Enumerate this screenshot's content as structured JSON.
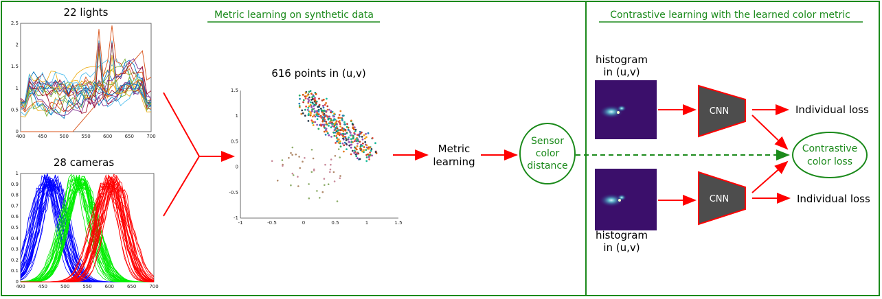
{
  "sections": {
    "left_title": "Metric learning on synthetic data",
    "right_title": "Contrastive learning with the learned color metric"
  },
  "lights_plot": {
    "title": "22 lights",
    "x_ticks": [
      "400",
      "450",
      "500",
      "550",
      "600",
      "650",
      "700"
    ],
    "y_ticks": [
      "0",
      "0.5",
      "1",
      "1.5",
      "2",
      "2.5"
    ]
  },
  "cameras_plot": {
    "title": "28 cameras",
    "x_ticks": [
      "400",
      "450",
      "500",
      "550",
      "600",
      "650",
      "700"
    ],
    "y_ticks": [
      "0",
      "0.1",
      "0.2",
      "0.3",
      "0.4",
      "0.5",
      "0.6",
      "0.7",
      "0.8",
      "0.9",
      "1"
    ],
    "channel_colors": [
      "#0000ff",
      "#00ee00",
      "#ff0000"
    ]
  },
  "scatter_plot": {
    "title": "616 points in (u,v)",
    "x_ticks": [
      "-1",
      "-0.5",
      "0",
      "0.5",
      "1",
      "1.5"
    ],
    "y_ticks": [
      "-1",
      "-0.5",
      "0",
      "0.5",
      "1",
      "1.5"
    ]
  },
  "metric_learning": {
    "line1": "Metric",
    "line2": "learning"
  },
  "sensor_node": {
    "line1": "Sensor",
    "line2": "color",
    "line3": "distance"
  },
  "histogram_top": {
    "line1": "histogram",
    "line2": "in (u,v)"
  },
  "histogram_bottom": {
    "line1": "histogram",
    "line2": "in (u,v)"
  },
  "cnn_top": "CNN",
  "cnn_bottom": "CNN",
  "loss_top": "Individual loss",
  "loss_bottom": "Individual loss",
  "contrastive_node": {
    "line1": "Contrastive",
    "line2": "color loss"
  },
  "colors": {
    "frame": "#1b8a1b",
    "arrow": "#ff0000",
    "cnn_fill": "#4d4d4d",
    "histogram_bg": "#3b0f6b"
  }
}
